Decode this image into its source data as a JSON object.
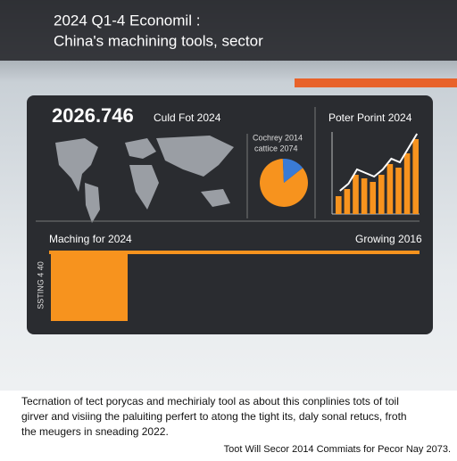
{
  "header": {
    "title_line1": "2024 Q1-4 Economil :",
    "title_line2": "China's machining tools, sector"
  },
  "panel": {
    "headline": "2026.746",
    "headline_caption": "Culd Fot 2024"
  },
  "pie": {
    "label_line1": "Cochrey 2014",
    "label_line2": "cattice 2074",
    "values": [
      85,
      15
    ],
    "colors": [
      "#f7931e",
      "#3a7bd5"
    ]
  },
  "bars": {
    "title": "Poter Porint 2024",
    "values": [
      2.5,
      3.5,
      5.5,
      5,
      4.5,
      5.5,
      7,
      6.5,
      8.5,
      10.5
    ],
    "color": "#f7931e"
  },
  "bottom": {
    "left_label": "Maching for 2024",
    "right_label": "Growing 2016",
    "vertical_label": "SSTING 4 40"
  },
  "footer": {
    "lines": [
      "Tecrnation of tect porycas and mechirialy tool as about this conplinies tots of toil",
      "girver and visiing the paluiting perfert to atong the tight its, daly sonal retucs, froth",
      "the meugers in sneading 2022."
    ],
    "caption": "Toot Will Secor 2014 Commiats for Pecor Nay 2073."
  }
}
